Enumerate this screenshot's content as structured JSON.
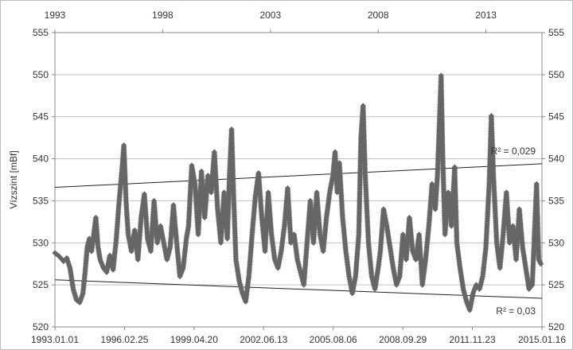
{
  "chart_data": {
    "type": "scatter",
    "ylabel": "Vízszint [mBf]",
    "ylim": [
      520,
      555
    ],
    "y_ticks": [
      "520",
      "525",
      "530",
      "535",
      "540",
      "545",
      "550",
      "555"
    ],
    "x_bottom_ticks": [
      "1993.01.01",
      "1996.02.25",
      "1999.04.20",
      "2002.06.13",
      "2005.08.06",
      "2008.09.29",
      "2011.11.23",
      "2015.01.16"
    ],
    "x_top_ticks": [
      "1993",
      "1998",
      "2003",
      "2008",
      "2013"
    ],
    "x_range_years": [
      1993.0,
      2015.6
    ],
    "grid": "horizontal",
    "series": [
      {
        "marker": "diamond",
        "color": "#666666",
        "points": [
          [
            1993.0,
            528.8
          ],
          [
            1993.2,
            528.4
          ],
          [
            1993.4,
            527.8
          ],
          [
            1993.55,
            528.2
          ],
          [
            1993.7,
            527.0
          ],
          [
            1993.85,
            524.5
          ],
          [
            1994.0,
            523.2
          ],
          [
            1994.15,
            522.9
          ],
          [
            1994.3,
            524.0
          ],
          [
            1994.4,
            526.5
          ],
          [
            1994.5,
            529.5
          ],
          [
            1994.6,
            530.5
          ],
          [
            1994.7,
            529.0
          ],
          [
            1994.8,
            531.0
          ],
          [
            1994.9,
            533.0
          ],
          [
            1995.0,
            529.5
          ],
          [
            1995.1,
            528.0
          ],
          [
            1995.25,
            527.0
          ],
          [
            1995.4,
            526.5
          ],
          [
            1995.55,
            528.5
          ],
          [
            1995.7,
            526.8
          ],
          [
            1995.85,
            530.5
          ],
          [
            1995.95,
            534.0
          ],
          [
            1996.05,
            537.0
          ],
          [
            1996.12,
            539.0
          ],
          [
            1996.2,
            541.6
          ],
          [
            1996.3,
            535.0
          ],
          [
            1996.4,
            531.0
          ],
          [
            1996.55,
            529.0
          ],
          [
            1996.7,
            531.5
          ],
          [
            1996.85,
            528.0
          ],
          [
            1997.0,
            533.0
          ],
          [
            1997.15,
            535.8
          ],
          [
            1997.3,
            530.5
          ],
          [
            1997.45,
            529.0
          ],
          [
            1997.6,
            535.0
          ],
          [
            1997.75,
            530.0
          ],
          [
            1997.9,
            532.0
          ],
          [
            1998.05,
            530.0
          ],
          [
            1998.2,
            528.0
          ],
          [
            1998.35,
            529.5
          ],
          [
            1998.5,
            534.5
          ],
          [
            1998.65,
            530.0
          ],
          [
            1998.8,
            526.0
          ],
          [
            1998.95,
            527.0
          ],
          [
            1999.1,
            530.5
          ],
          [
            1999.2,
            532.0
          ],
          [
            1999.35,
            539.2
          ],
          [
            1999.5,
            537.0
          ],
          [
            1999.65,
            531.0
          ],
          [
            1999.8,
            538.5
          ],
          [
            1999.95,
            533.0
          ],
          [
            2000.1,
            538.0
          ],
          [
            2000.25,
            536.0
          ],
          [
            2000.4,
            540.8
          ],
          [
            2000.55,
            534.0
          ],
          [
            2000.7,
            530.0
          ],
          [
            2000.85,
            536.0
          ],
          [
            2001.0,
            530.5
          ],
          [
            2001.1,
            538.0
          ],
          [
            2001.2,
            543.5
          ],
          [
            2001.3,
            535.0
          ],
          [
            2001.4,
            528.0
          ],
          [
            2001.55,
            525.5
          ],
          [
            2001.7,
            524.0
          ],
          [
            2001.85,
            523.0
          ],
          [
            2002.0,
            526.0
          ],
          [
            2002.15,
            531.0
          ],
          [
            2002.3,
            535.5
          ],
          [
            2002.45,
            538.3
          ],
          [
            2002.6,
            533.0
          ],
          [
            2002.75,
            529.0
          ],
          [
            2002.9,
            536.0
          ],
          [
            2003.05,
            531.0
          ],
          [
            2003.2,
            528.0
          ],
          [
            2003.35,
            527.0
          ],
          [
            2003.5,
            529.0
          ],
          [
            2003.65,
            532.0
          ],
          [
            2003.8,
            536.5
          ],
          [
            2003.95,
            530.0
          ],
          [
            2004.1,
            531.0
          ],
          [
            2004.25,
            528.0
          ],
          [
            2004.4,
            526.5
          ],
          [
            2004.55,
            525.0
          ],
          [
            2004.7,
            530.0
          ],
          [
            2004.85,
            535.0
          ],
          [
            2005.0,
            530.0
          ],
          [
            2005.15,
            536.0
          ],
          [
            2005.3,
            531.0
          ],
          [
            2005.45,
            529.0
          ],
          [
            2005.6,
            533.0
          ],
          [
            2005.75,
            536.0
          ],
          [
            2005.9,
            538.0
          ],
          [
            2006.0,
            540.8
          ],
          [
            2006.1,
            536.0
          ],
          [
            2006.2,
            539.5
          ],
          [
            2006.35,
            533.0
          ],
          [
            2006.5,
            529.0
          ],
          [
            2006.65,
            526.0
          ],
          [
            2006.8,
            524.0
          ],
          [
            2006.95,
            526.0
          ],
          [
            2007.1,
            531.0
          ],
          [
            2007.2,
            542.5
          ],
          [
            2007.3,
            546.3
          ],
          [
            2007.4,
            538.0
          ],
          [
            2007.55,
            530.0
          ],
          [
            2007.7,
            526.0
          ],
          [
            2007.85,
            524.5
          ],
          [
            2008.0,
            527.0
          ],
          [
            2008.1,
            529.0
          ],
          [
            2008.25,
            534.0
          ],
          [
            2008.4,
            532.0
          ],
          [
            2008.55,
            529.5
          ],
          [
            2008.7,
            527.0
          ],
          [
            2008.85,
            525.0
          ],
          [
            2009.0,
            526.0
          ],
          [
            2009.15,
            531.0
          ],
          [
            2009.3,
            528.0
          ],
          [
            2009.45,
            533.0
          ],
          [
            2009.6,
            529.0
          ],
          [
            2009.75,
            528.0
          ],
          [
            2009.9,
            531.0
          ],
          [
            2010.05,
            525.0
          ],
          [
            2010.2,
            528.0
          ],
          [
            2010.35,
            532.0
          ],
          [
            2010.5,
            537.0
          ],
          [
            2010.65,
            534.0
          ],
          [
            2010.75,
            538.0
          ],
          [
            2010.85,
            545.0
          ],
          [
            2010.92,
            549.9
          ],
          [
            2011.0,
            540.0
          ],
          [
            2011.1,
            531.0
          ],
          [
            2011.25,
            536.0
          ],
          [
            2011.4,
            532.0
          ],
          [
            2011.55,
            539.0
          ],
          [
            2011.65,
            530.0
          ],
          [
            2011.8,
            527.0
          ],
          [
            2011.95,
            524.5
          ],
          [
            2012.1,
            523.0
          ],
          [
            2012.25,
            522.0
          ],
          [
            2012.4,
            524.0
          ],
          [
            2012.55,
            525.0
          ],
          [
            2012.7,
            524.5
          ],
          [
            2012.85,
            526.0
          ],
          [
            2013.0,
            529.5
          ],
          [
            2013.15,
            537.0
          ],
          [
            2013.25,
            545.1
          ],
          [
            2013.35,
            538.0
          ],
          [
            2013.5,
            530.0
          ],
          [
            2013.65,
            527.0
          ],
          [
            2013.8,
            531.0
          ],
          [
            2013.95,
            536.0
          ],
          [
            2014.1,
            530.0
          ],
          [
            2014.25,
            532.0
          ],
          [
            2014.4,
            528.0
          ],
          [
            2014.55,
            534.0
          ],
          [
            2014.7,
            529.5
          ],
          [
            2014.85,
            527.0
          ],
          [
            2015.0,
            524.5
          ],
          [
            2015.15,
            525.0
          ],
          [
            2015.25,
            531.0
          ],
          [
            2015.35,
            537.0
          ],
          [
            2015.45,
            528.0
          ],
          [
            2015.55,
            527.5
          ]
        ]
      }
    ],
    "trendlines": [
      {
        "label": "R² = 0,029",
        "y_start": 536.6,
        "y_end": 539.4
      },
      {
        "label": "R² = 0,03",
        "y_start": 525.6,
        "y_end": 523.4
      }
    ]
  }
}
